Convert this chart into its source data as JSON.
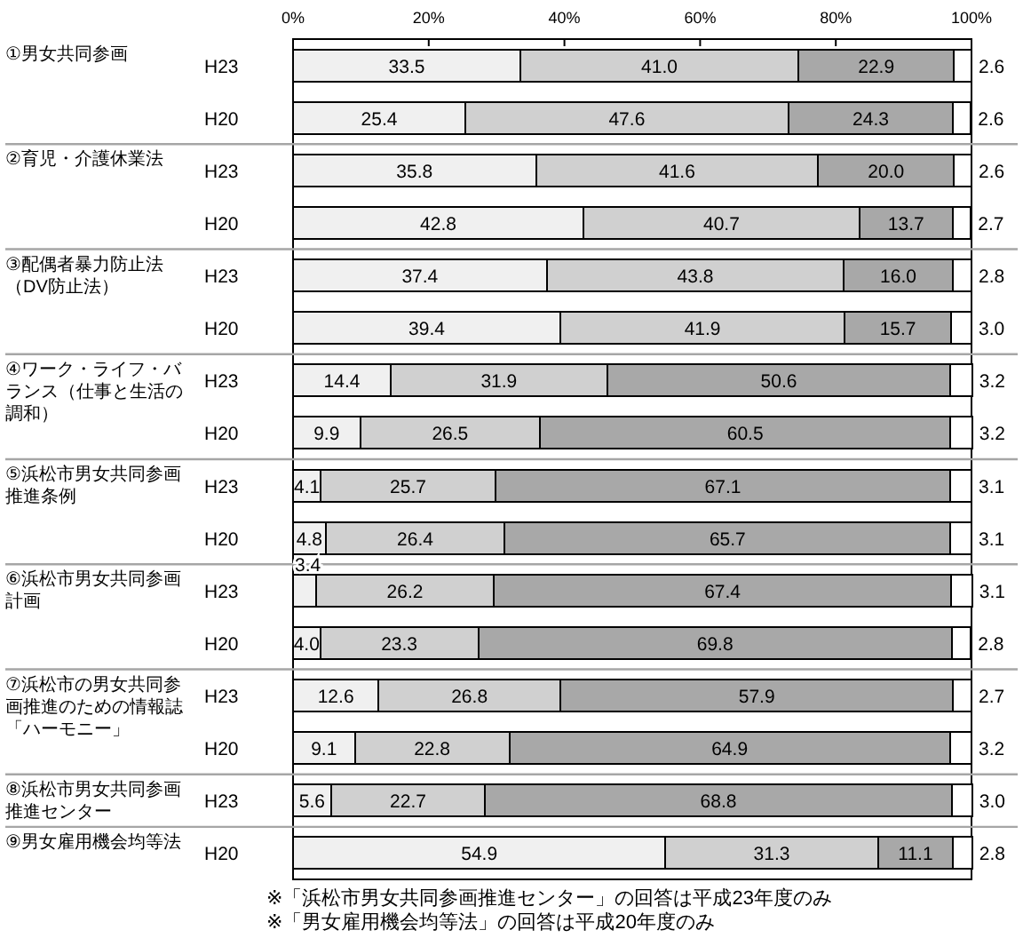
{
  "chart_data": [
    {
      "type": "bar",
      "orientation": "horizontal",
      "stacked": true,
      "title": "①男女共同参画",
      "categories": [
        "H23",
        "H20"
      ],
      "series": [
        {
          "color": "#f0f0f0",
          "values": [
            33.5,
            25.4
          ],
          "value_labels": [
            "33.5",
            "25.4"
          ]
        },
        {
          "color": "#d0d0d0",
          "values": [
            41.0,
            47.6
          ],
          "value_labels": [
            "41.0",
            "47.6"
          ]
        },
        {
          "color": "#a8a8a8",
          "values": [
            22.9,
            24.3
          ],
          "value_labels": [
            "22.9",
            "24.3"
          ]
        },
        {
          "color": "#ffffff",
          "values": [
            2.6,
            2.6
          ],
          "value_labels": [
            "2.6",
            "2.6"
          ]
        }
      ],
      "xlim": [
        0,
        100
      ],
      "xticks": [
        {
          "value": 0,
          "label": "0%"
        },
        {
          "value": 20,
          "label": "20%"
        },
        {
          "value": 40,
          "label": "40%"
        },
        {
          "value": 60,
          "label": "60%"
        },
        {
          "value": 80,
          "label": "80%"
        },
        {
          "value": 100,
          "label": "100%"
        }
      ]
    },
    {
      "type": "bar",
      "orientation": "horizontal",
      "stacked": true,
      "title": "②育児・介護休業法",
      "categories": [
        "H23",
        "H20"
      ],
      "series": [
        {
          "color": "#f0f0f0",
          "values": [
            35.8,
            42.8
          ],
          "value_labels": [
            "35.8",
            "42.8"
          ]
        },
        {
          "color": "#d0d0d0",
          "values": [
            41.6,
            40.7
          ],
          "value_labels": [
            "41.6",
            "40.7"
          ]
        },
        {
          "color": "#a8a8a8",
          "values": [
            20.0,
            13.7
          ],
          "value_labels": [
            "20.0",
            "13.7"
          ]
        },
        {
          "color": "#ffffff",
          "values": [
            2.6,
            2.7
          ],
          "value_labels": [
            "2.6",
            "2.7"
          ]
        }
      ],
      "xlim": [
        0,
        100
      ],
      "tick_labels": "y"
    },
    {
      "type": "bar",
      "orientation": "horizontal",
      "stacked": true,
      "title": "③配偶者暴力防止法（DV防止法）",
      "categories": [
        "H23",
        "H20"
      ],
      "series": [
        {
          "color": "#f0f0f0",
          "values": [
            37.4,
            39.4
          ],
          "value_labels": [
            "37.4",
            "39.4"
          ]
        },
        {
          "color": "#d0d0d0",
          "values": [
            43.8,
            41.9
          ],
          "value_labels": [
            "43.8",
            "41.9"
          ]
        },
        {
          "color": "#a8a8a8",
          "values": [
            16.0,
            15.7
          ],
          "value_labels": [
            "16.0",
            "15.7"
          ]
        },
        {
          "color": "#ffffff",
          "values": [
            2.8,
            3.0
          ],
          "value_labels": [
            "2.8",
            "3.0"
          ]
        }
      ],
      "xlim": [
        0,
        100
      ],
      "tick_labels": "y"
    },
    {
      "type": "bar",
      "orientation": "horizontal",
      "stacked": true,
      "title": "④ワーク・ライフ・バランス（仕事と生活の調和）",
      "categories": [
        "H23",
        "H20"
      ],
      "series": [
        {
          "color": "#f0f0f0",
          "values": [
            14.4,
            9.9
          ],
          "value_labels": [
            "14.4",
            "9.9"
          ]
        },
        {
          "color": "#d0d0d0",
          "values": [
            31.9,
            26.5
          ],
          "value_labels": [
            "31.9",
            "26.5"
          ]
        },
        {
          "color": "#a8a8a8",
          "values": [
            50.6,
            60.5
          ],
          "value_labels": [
            "50.6",
            "60.5"
          ]
        },
        {
          "color": "#ffffff",
          "values": [
            3.2,
            3.2
          ],
          "value_labels": [
            "3.2",
            "3.2"
          ]
        }
      ],
      "xlim": [
        0,
        100
      ],
      "tick_labels": "y"
    },
    {
      "type": "bar",
      "orientation": "horizontal",
      "stacked": true,
      "title": "⑤浜松市男女共同参画推進条例",
      "categories": [
        "H23",
        "H20"
      ],
      "series": [
        {
          "color": "#f0f0f0",
          "values": [
            4.1,
            4.8
          ],
          "value_labels": [
            "4.1",
            "4.8"
          ]
        },
        {
          "color": "#d0d0d0",
          "values": [
            25.7,
            26.4
          ],
          "value_labels": [
            "25.7",
            "26.4"
          ]
        },
        {
          "color": "#a8a8a8",
          "values": [
            67.1,
            65.7
          ],
          "value_labels": [
            "67.1",
            "65.7"
          ]
        },
        {
          "color": "#ffffff",
          "values": [
            3.1,
            3.1
          ],
          "value_labels": [
            "3.1",
            "3.1"
          ]
        }
      ],
      "xlim": [
        0,
        100
      ],
      "tick_labels": "y"
    },
    {
      "type": "bar",
      "orientation": "horizontal",
      "stacked": true,
      "title": "⑥浜松市男女共同参画計画",
      "categories": [
        "H23",
        "H20"
      ],
      "series": [
        {
          "color": "#f0f0f0",
          "values": [
            3.4,
            4.0
          ],
          "value_labels": [
            "3.4",
            "4.0"
          ]
        },
        {
          "color": "#d0d0d0",
          "values": [
            26.2,
            23.3
          ],
          "value_labels": [
            "26.2",
            "23.3"
          ]
        },
        {
          "color": "#a8a8a8",
          "values": [
            67.4,
            69.8
          ],
          "value_labels": [
            "67.4",
            "69.8"
          ]
        },
        {
          "color": "#ffffff",
          "values": [
            3.1,
            2.8
          ],
          "value_labels": [
            "3.1",
            "2.8"
          ]
        }
      ],
      "xlim": [
        0,
        100
      ],
      "tick_labels": "y"
    },
    {
      "type": "bar",
      "orientation": "horizontal",
      "stacked": true,
      "title": "⑦浜松市の男女共同参画推進のための情報誌「ハーモニー」",
      "categories": [
        "H23",
        "H20"
      ],
      "series": [
        {
          "color": "#f0f0f0",
          "values": [
            12.6,
            9.1
          ],
          "value_labels": [
            "12.6",
            "9.1"
          ]
        },
        {
          "color": "#d0d0d0",
          "values": [
            26.8,
            22.8
          ],
          "value_labels": [
            "26.8",
            "22.8"
          ]
        },
        {
          "color": "#a8a8a8",
          "values": [
            57.9,
            64.9
          ],
          "value_labels": [
            "57.9",
            "64.9"
          ]
        },
        {
          "color": "#ffffff",
          "values": [
            2.7,
            3.2
          ],
          "value_labels": [
            "2.7",
            "3.2"
          ]
        }
      ],
      "xlim": [
        0,
        100
      ],
      "tick_labels": "y"
    },
    {
      "type": "bar",
      "orientation": "horizontal",
      "stacked": true,
      "title": "⑧浜松市男女共同参画推進センター",
      "categories": [
        "H23"
      ],
      "series": [
        {
          "color": "#f0f0f0",
          "values": [
            5.6
          ],
          "value_labels": [
            "5.6"
          ]
        },
        {
          "color": "#d0d0d0",
          "values": [
            22.7
          ],
          "value_labels": [
            "22.7"
          ]
        },
        {
          "color": "#a8a8a8",
          "values": [
            68.8
          ],
          "value_labels": [
            "68.8"
          ]
        },
        {
          "color": "#ffffff",
          "values": [
            3.0
          ],
          "value_labels": [
            "3.0"
          ]
        }
      ],
      "xlim": [
        0,
        100
      ],
      "tick_labels": "y"
    },
    {
      "type": "bar",
      "orientation": "horizontal",
      "stacked": true,
      "title": "⑨男女雇用機会均等法",
      "categories": [
        "H20"
      ],
      "series": [
        {
          "color": "#f0f0f0",
          "values": [
            54.9
          ],
          "value_labels": [
            "54.9"
          ]
        },
        {
          "color": "#d0d0d0",
          "values": [
            31.3
          ],
          "value_labels": [
            "31.3"
          ]
        },
        {
          "color": "#a8a8a8",
          "values": [
            11.1
          ],
          "value_labels": [
            "11.1"
          ]
        },
        {
          "color": "#ffffff",
          "values": [
            2.8
          ],
          "value_labels": [
            "2.8"
          ]
        }
      ],
      "xlim": [
        0,
        100
      ],
      "tick_labels": "y",
      "annotations": [
        "※「浜松市男女共同参画推進センター」の回答は平成23年度のみ",
        "※「男女雇用機会均等法」の回答は平成20年度のみ"
      ]
    }
  ]
}
